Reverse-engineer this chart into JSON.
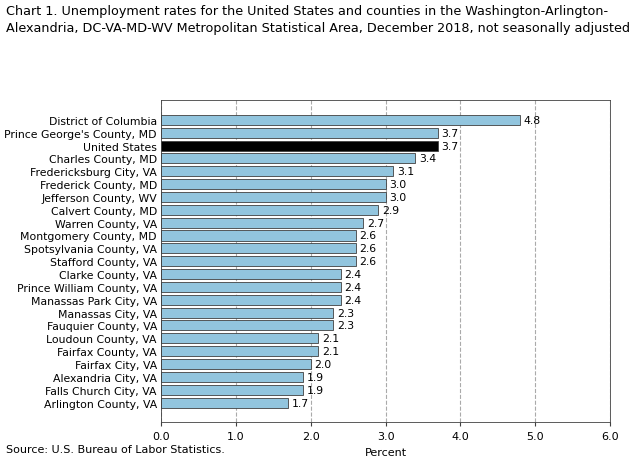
{
  "title_line1": "Chart 1. Unemployment rates for the United States and counties in the Washington-Arlington-",
  "title_line2": "Alexandria, DC-VA-MD-WV Metropolitan Statistical Area, December 2018, not seasonally adjusted",
  "categories": [
    "District of Columbia",
    "Prince George's County, MD",
    "United States",
    "Charles County, MD",
    "Fredericksburg City, VA",
    "Frederick County, MD",
    "Jefferson County, WV",
    "Calvert County, MD",
    "Warren County, VA",
    "Montgomery County, MD",
    "Spotsylvania County, VA",
    "Stafford County, VA",
    "Clarke County, VA",
    "Prince William County, VA",
    "Manassas Park City, VA",
    "Manassas City, VA",
    "Fauquier County, VA",
    "Loudoun County, VA",
    "Fairfax County, VA",
    "Fairfax City, VA",
    "Alexandria City, VA",
    "Falls Church City, VA",
    "Arlington County, VA"
  ],
  "values": [
    4.8,
    3.7,
    3.7,
    3.4,
    3.1,
    3.0,
    3.0,
    2.9,
    2.7,
    2.6,
    2.6,
    2.6,
    2.4,
    2.4,
    2.4,
    2.3,
    2.3,
    2.1,
    2.1,
    2.0,
    1.9,
    1.9,
    1.7
  ],
  "bar_colors": [
    "#92c5de",
    "#92c5de",
    "#000000",
    "#92c5de",
    "#92c5de",
    "#92c5de",
    "#92c5de",
    "#92c5de",
    "#92c5de",
    "#92c5de",
    "#92c5de",
    "#92c5de",
    "#92c5de",
    "#92c5de",
    "#92c5de",
    "#92c5de",
    "#92c5de",
    "#92c5de",
    "#92c5de",
    "#92c5de",
    "#92c5de",
    "#92c5de",
    "#92c5de"
  ],
  "xlim": [
    0,
    6.0
  ],
  "xticks": [
    0.0,
    1.0,
    2.0,
    3.0,
    4.0,
    5.0,
    6.0
  ],
  "xlabel": "Percent",
  "source": "Source: U.S. Bureau of Labor Statistics.",
  "title_fontsize": 9.2,
  "label_fontsize": 7.8,
  "tick_fontsize": 8.0,
  "source_fontsize": 8.0,
  "background_color": "#ffffff",
  "grid_color": "#aaaaaa",
  "bar_edge_color": "#404040",
  "bar_height": 0.78
}
